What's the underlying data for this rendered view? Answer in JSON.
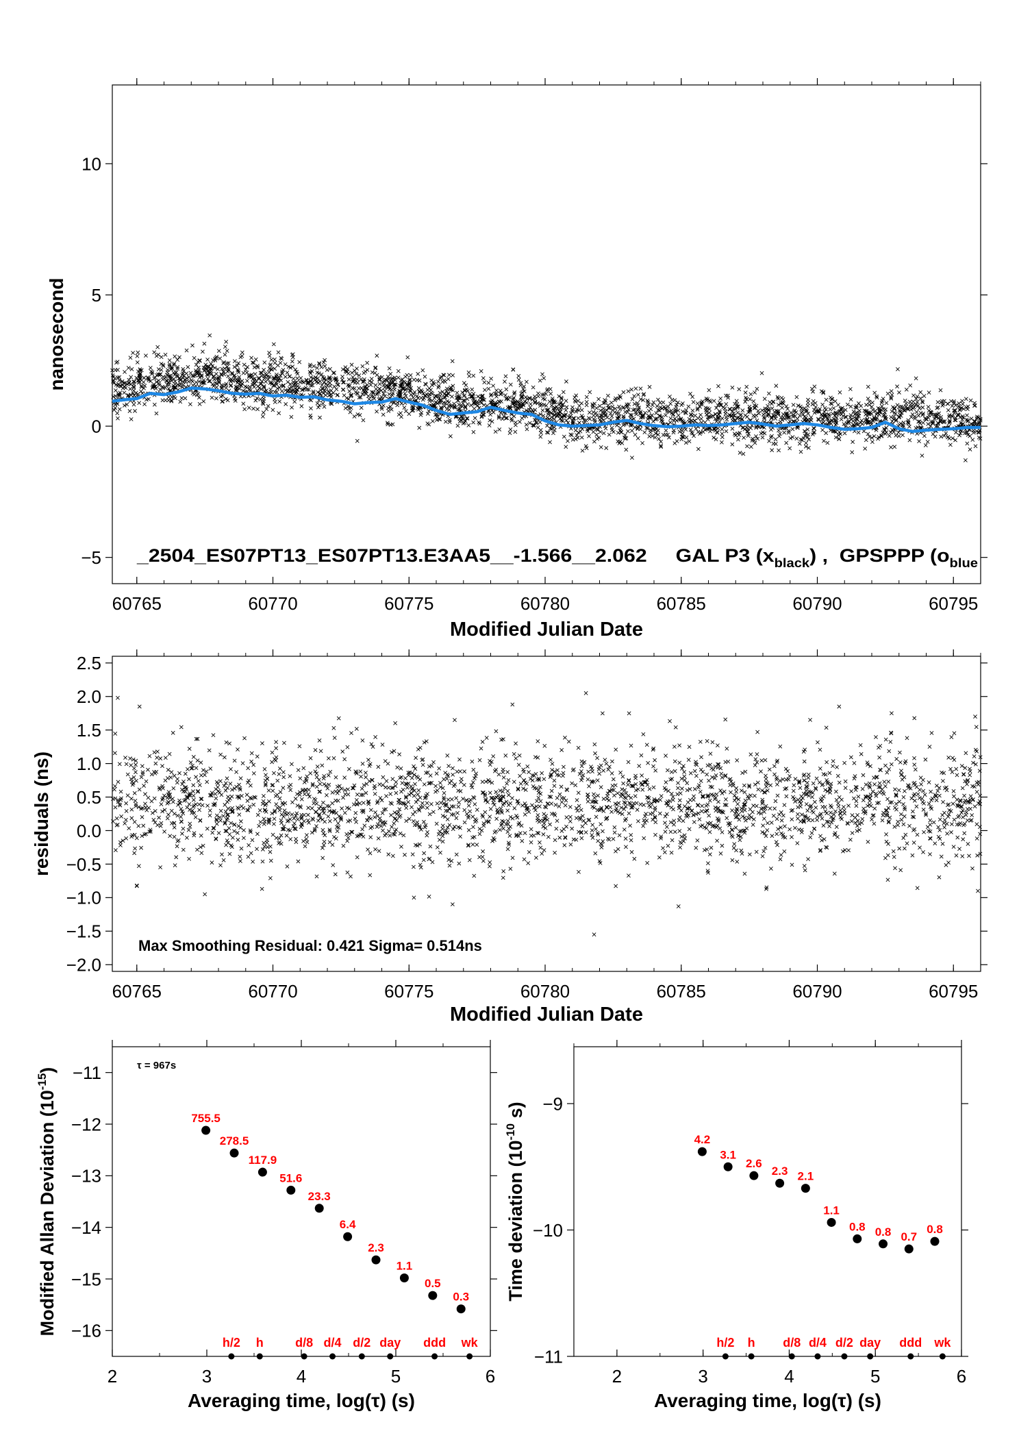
{
  "chart_data": [
    {
      "type": "scatter",
      "id": "clock_offset",
      "title": "",
      "annotation": {
        "prefix": "_2504_ES07PT13_ES07PT13.E3AA5__-1.566__2.062     GAL P3 (x",
        "sub1": "black",
        "mid": ") ,  GPSPPP (o",
        "sub2": "blue"
      },
      "xlabel": "Modified Julian Date",
      "ylabel": "nanosecond",
      "xlim": [
        60764.1,
        60796.0
      ],
      "ylim": [
        -6.0,
        13.0
      ],
      "xticks": [
        60765,
        60770,
        60775,
        60780,
        60785,
        60790,
        60795
      ],
      "xtick_labels": [
        "60765",
        "60770",
        "60775",
        "60780",
        "60785",
        "60790",
        "60795"
      ],
      "yticks": [
        -5,
        0,
        5,
        10
      ],
      "ytick_labels": [
        "−5",
        "0",
        "5",
        "10"
      ],
      "grid": false,
      "series": [
        {
          "marker": "x",
          "color": "#000000",
          "n_points": 2950,
          "trend_points": [
            [
              60764.1,
              1.4
            ],
            [
              60765.0,
              1.65
            ],
            [
              60766.0,
              1.75
            ],
            [
              60767.0,
              1.85
            ],
            [
              60768.0,
              1.85
            ],
            [
              60769.0,
              1.75
            ],
            [
              60770.0,
              1.65
            ],
            [
              60771.0,
              1.55
            ],
            [
              60772.0,
              1.5
            ],
            [
              60773.0,
              1.4
            ],
            [
              60774.0,
              1.35
            ],
            [
              60775.0,
              1.25
            ],
            [
              60776.0,
              1.0
            ],
            [
              60777.0,
              0.85
            ],
            [
              60778.0,
              0.95
            ],
            [
              60779.0,
              0.8
            ],
            [
              60780.0,
              0.55
            ],
            [
              60781.0,
              0.3
            ],
            [
              60782.0,
              0.2
            ],
            [
              60783.0,
              0.35
            ],
            [
              60784.0,
              0.35
            ],
            [
              60785.0,
              0.25
            ],
            [
              60786.0,
              0.3
            ],
            [
              60787.0,
              0.3
            ],
            [
              60788.0,
              0.25
            ],
            [
              60789.0,
              0.3
            ],
            [
              60790.0,
              0.35
            ],
            [
              60791.0,
              0.3
            ],
            [
              60792.0,
              0.35
            ],
            [
              60793.0,
              0.4
            ],
            [
              60794.0,
              0.35
            ],
            [
              60795.0,
              0.2
            ],
            [
              60796.0,
              0.15
            ]
          ],
          "scatter_sigma": 0.5
        },
        {
          "marker": "line",
          "color": "#1e88e5",
          "points": [
            [
              60764.1,
              0.95
            ],
            [
              60764.5,
              1.0
            ],
            [
              60765.0,
              1.05
            ],
            [
              60765.5,
              1.25
            ],
            [
              60766.0,
              1.2
            ],
            [
              60766.5,
              1.3
            ],
            [
              60767.0,
              1.45
            ],
            [
              60767.5,
              1.42
            ],
            [
              60768.0,
              1.35
            ],
            [
              60768.5,
              1.25
            ],
            [
              60769.0,
              1.22
            ],
            [
              60769.5,
              1.25
            ],
            [
              60770.0,
              1.15
            ],
            [
              60770.5,
              1.18
            ],
            [
              60771.0,
              1.1
            ],
            [
              60771.5,
              1.12
            ],
            [
              60772.0,
              1.0
            ],
            [
              60772.5,
              0.95
            ],
            [
              60773.0,
              0.85
            ],
            [
              60773.5,
              0.9
            ],
            [
              60774.0,
              0.92
            ],
            [
              60774.5,
              1.05
            ],
            [
              60775.0,
              0.92
            ],
            [
              60775.5,
              0.8
            ],
            [
              60776.0,
              0.6
            ],
            [
              60776.5,
              0.45
            ],
            [
              60777.0,
              0.5
            ],
            [
              60777.5,
              0.55
            ],
            [
              60778.0,
              0.72
            ],
            [
              60778.5,
              0.6
            ],
            [
              60779.0,
              0.5
            ],
            [
              60779.5,
              0.45
            ],
            [
              60780.0,
              0.2
            ],
            [
              60780.5,
              0.05
            ],
            [
              60781.0,
              0.0
            ],
            [
              60781.5,
              0.02
            ],
            [
              60782.0,
              0.05
            ],
            [
              60782.5,
              0.15
            ],
            [
              60783.0,
              0.22
            ],
            [
              60783.5,
              0.1
            ],
            [
              60784.0,
              0.02
            ],
            [
              60784.5,
              -0.02
            ],
            [
              60785.0,
              0.0
            ],
            [
              60785.5,
              0.05
            ],
            [
              60786.0,
              0.02
            ],
            [
              60786.5,
              0.05
            ],
            [
              60787.0,
              0.1
            ],
            [
              60787.5,
              0.15
            ],
            [
              60788.0,
              0.08
            ],
            [
              60788.5,
              0.0
            ],
            [
              60789.0,
              0.05
            ],
            [
              60789.5,
              0.1
            ],
            [
              60790.0,
              0.05
            ],
            [
              60790.5,
              -0.05
            ],
            [
              60791.0,
              -0.12
            ],
            [
              60791.5,
              -0.1
            ],
            [
              60792.0,
              -0.05
            ],
            [
              60792.5,
              0.15
            ],
            [
              60793.0,
              -0.1
            ],
            [
              60793.5,
              -0.2
            ],
            [
              60794.0,
              -0.15
            ],
            [
              60794.5,
              -0.12
            ],
            [
              60795.0,
              -0.1
            ],
            [
              60795.5,
              -0.05
            ],
            [
              60796.0,
              -0.05
            ]
          ]
        }
      ]
    },
    {
      "type": "scatter",
      "id": "residuals",
      "title": "",
      "annotation": "Max Smoothing Residual: 0.421  Sigma= 0.514ns",
      "xlabel": "Modified Julian Date",
      "ylabel": "residuals (ns)",
      "xlim": [
        60764.1,
        60796.0
      ],
      "ylim": [
        -2.1,
        2.6
      ],
      "xticks": [
        60765,
        60770,
        60775,
        60780,
        60785,
        60790,
        60795
      ],
      "xtick_labels": [
        "60765",
        "60770",
        "60775",
        "60780",
        "60785",
        "60790",
        "60795"
      ],
      "yticks": [
        -2.0,
        -1.5,
        -1.0,
        -0.5,
        0.0,
        0.5,
        1.0,
        1.5,
        2.0,
        2.5
      ],
      "ytick_labels": [
        "−2.0",
        "−1.5",
        "−1.0",
        "−0.5",
        "0.0",
        "0.5",
        "1.0",
        "1.5",
        "2.0",
        "2.5"
      ],
      "grid": false,
      "series": [
        {
          "marker": "x",
          "color": "#000000",
          "n_points": 2500,
          "mean": 0.4,
          "sigma": 0.514,
          "outliers": [
            [
              60781.5,
              2.05
            ],
            [
              60764.3,
              1.98
            ],
            [
              60765.1,
              1.85
            ],
            [
              60778.8,
              1.88
            ],
            [
              60790.8,
              1.85
            ],
            [
              60795.8,
              1.7
            ],
            [
              60781.8,
              -1.55
            ],
            [
              60776.6,
              -1.1
            ],
            [
              60784.9,
              -1.13
            ],
            [
              60765.0,
              -0.82
            ],
            [
              60767.5,
              -0.95
            ],
            [
              60769.6,
              -0.87
            ],
            [
              60795.9,
              -0.9
            ]
          ]
        }
      ]
    },
    {
      "type": "scatter",
      "id": "modified_allan_deviation",
      "title": "",
      "tau_label": "τ = 967s",
      "xlabel": "Averaging time, log(τ) (s)",
      "ylabel_prefix": "Modified Allan Deviation (10",
      "ylabel_exp": "-15",
      "ylabel_suffix": ")",
      "xlim": [
        2,
        6
      ],
      "ylim": [
        -16.5,
        -10.5
      ],
      "xticks": [
        2,
        3,
        4,
        5,
        6
      ],
      "xtick_labels": [
        "2",
        "3",
        "4",
        "5",
        "6"
      ],
      "yticks": [
        -16,
        -15,
        -14,
        -13,
        -12,
        -11
      ],
      "ytick_labels": [
        "−16",
        "−15",
        "−14",
        "−13",
        "−12",
        "−11"
      ],
      "grid": false,
      "series": [
        {
          "marker": "dot",
          "color": "#000000",
          "x": [
            2.99,
            3.29,
            3.59,
            3.89,
            4.19,
            4.49,
            4.79,
            5.09,
            5.39,
            5.69
          ],
          "y": [
            -12.12,
            -12.56,
            -12.93,
            -13.28,
            -13.63,
            -14.18,
            -14.63,
            -14.98,
            -15.32,
            -15.58
          ],
          "labels": [
            "755.5",
            "278.5",
            "117.9",
            "51.6",
            "23.3",
            "6.4",
            "2.3",
            "1.1",
            "0.5",
            "0.3"
          ]
        }
      ],
      "marker_times": {
        "x": [
          3.26,
          3.56,
          4.03,
          4.33,
          4.64,
          4.94,
          5.41,
          5.78
        ],
        "labels": [
          "h/2",
          "h",
          "d/8",
          "d/4",
          "d/2",
          "day",
          "ddd",
          "wk"
        ]
      }
    },
    {
      "type": "scatter",
      "id": "time_deviation",
      "title": "",
      "xlabel": "Averaging time, log(τ) (s)",
      "ylabel_prefix": "Time deviation (10",
      "ylabel_exp": "-10",
      "ylabel_suffix": " s)",
      "xlim": [
        1.5,
        6
      ],
      "ylim": [
        -11.0,
        -8.55
      ],
      "xticks": [
        2,
        3,
        4,
        5,
        6
      ],
      "xtick_labels": [
        "2",
        "3",
        "4",
        "5",
        "6"
      ],
      "yticks": [
        -11,
        -10,
        -9
      ],
      "ytick_labels": [
        "−11",
        "−10",
        "−9"
      ],
      "grid": false,
      "series": [
        {
          "marker": "dot",
          "color": "#000000",
          "x": [
            2.99,
            3.29,
            3.59,
            3.89,
            4.19,
            4.49,
            4.79,
            5.09,
            5.39,
            5.69
          ],
          "y": [
            -9.38,
            -9.5,
            -9.57,
            -9.63,
            -9.67,
            -9.94,
            -10.07,
            -10.11,
            -10.15,
            -10.09
          ],
          "labels": [
            "4.2",
            "3.1",
            "2.6",
            "2.3",
            "2.1",
            "1.1",
            "0.8",
            "0.8",
            "0.7",
            "0.8"
          ]
        }
      ],
      "marker_times": {
        "x": [
          3.26,
          3.56,
          4.03,
          4.33,
          4.64,
          4.94,
          5.41,
          5.78
        ],
        "labels": [
          "h/2",
          "h",
          "d/8",
          "d/4",
          "d/2",
          "day",
          "ddd",
          "wk"
        ]
      }
    }
  ],
  "colors": {
    "axis": "#000000",
    "annotation_red": "#ff0000",
    "smoothing_line": "#1e88e5"
  }
}
